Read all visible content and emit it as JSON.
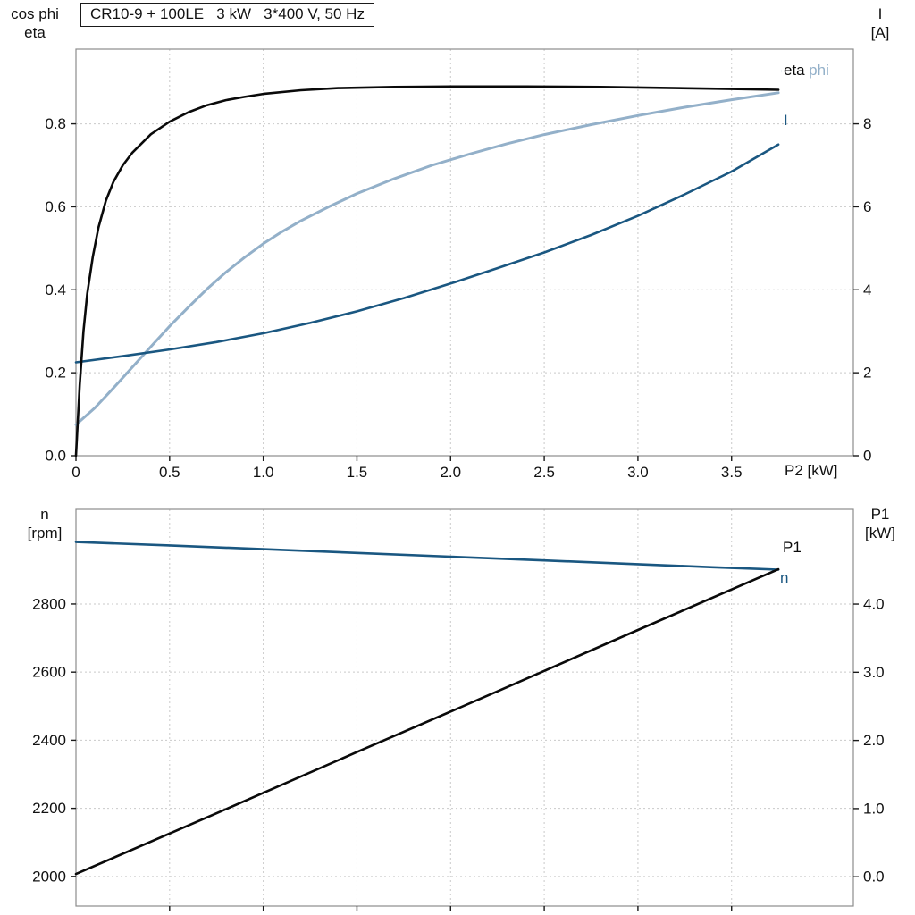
{
  "title_box": {
    "text": "CR10-9 + 100LE   3 kW   3*400 V, 50 Hz"
  },
  "labels": {
    "top_left_line1": "cos phi",
    "top_left_line2": "eta",
    "top_right_line1": "I",
    "top_right_line2": "[A]",
    "bottom_left_line1": "n",
    "bottom_left_line2": "[rpm]",
    "bottom_right_line1": "P1",
    "bottom_right_line2": "[kW]",
    "x_axis_label": "P2 [kW]"
  },
  "colors": {
    "black_curve": "#0a0a0a",
    "light_blue": "#93b0c9",
    "dark_blue": "#1a5781",
    "grid": "#c9c9c9",
    "frame": "#8c8c8c",
    "text": "#111111"
  },
  "chart_data": [
    {
      "id": "top",
      "type": "line",
      "title": "CR10-9 + 100LE   3 kW   3*400 V, 50 Hz",
      "x_axis": {
        "label": "P2 [kW]",
        "lim": [
          0,
          4.15
        ],
        "ticks": [
          {
            "v": 0,
            "label": "0"
          },
          {
            "v": 0.5,
            "label": "0.5"
          },
          {
            "v": 1,
            "label": "1.0"
          },
          {
            "v": 1.5,
            "label": "1.5"
          },
          {
            "v": 2,
            "label": "2.0"
          },
          {
            "v": 2.5,
            "label": "2.5"
          },
          {
            "v": 3,
            "label": "3.0"
          },
          {
            "v": 3.5,
            "label": "3.5"
          }
        ]
      },
      "left_axis": {
        "label": "cos phi / eta",
        "lim": [
          0,
          0.98
        ],
        "ticks": [
          {
            "v": 0,
            "label": "0.0"
          },
          {
            "v": 0.2,
            "label": "0.2"
          },
          {
            "v": 0.4,
            "label": "0.4"
          },
          {
            "v": 0.6,
            "label": "0.6"
          },
          {
            "v": 0.8,
            "label": "0.8"
          }
        ]
      },
      "right_axis": {
        "label": "I [A]",
        "lim": [
          0,
          9.8
        ],
        "ticks": [
          {
            "v": 0,
            "label": "0"
          },
          {
            "v": 2,
            "label": "2"
          },
          {
            "v": 4,
            "label": "4"
          },
          {
            "v": 6,
            "label": "6"
          },
          {
            "v": 8,
            "label": "8"
          }
        ]
      },
      "grid": true,
      "legend_position": "right-end-of-curves",
      "series": [
        {
          "name": "cos-phi",
          "label": "cos phi",
          "axis": "left",
          "color": "light_blue",
          "width": 3,
          "points": [
            [
              0,
              0.075
            ],
            [
              0.1,
              0.115
            ],
            [
              0.2,
              0.163
            ],
            [
              0.3,
              0.213
            ],
            [
              0.4,
              0.263
            ],
            [
              0.5,
              0.312
            ],
            [
              0.6,
              0.358
            ],
            [
              0.7,
              0.402
            ],
            [
              0.8,
              0.442
            ],
            [
              0.9,
              0.478
            ],
            [
              1.0,
              0.511
            ],
            [
              1.1,
              0.54
            ],
            [
              1.2,
              0.566
            ],
            [
              1.35,
              0.6
            ],
            [
              1.5,
              0.632
            ],
            [
              1.7,
              0.668
            ],
            [
              1.9,
              0.7
            ],
            [
              2.1,
              0.727
            ],
            [
              2.3,
              0.752
            ],
            [
              2.5,
              0.774
            ],
            [
              2.75,
              0.798
            ],
            [
              3.0,
              0.82
            ],
            [
              3.25,
              0.84
            ],
            [
              3.5,
              0.858
            ],
            [
              3.75,
              0.875
            ]
          ]
        },
        {
          "name": "current",
          "label": "I",
          "axis": "right",
          "color": "dark_blue",
          "width": 2.6,
          "points": [
            [
              0,
              2.25
            ],
            [
              0.25,
              2.4
            ],
            [
              0.5,
              2.56
            ],
            [
              0.75,
              2.74
            ],
            [
              1.0,
              2.95
            ],
            [
              1.25,
              3.2
            ],
            [
              1.5,
              3.48
            ],
            [
              1.75,
              3.8
            ],
            [
              2.0,
              4.15
            ],
            [
              2.25,
              4.52
            ],
            [
              2.5,
              4.9
            ],
            [
              2.75,
              5.32
            ],
            [
              3.0,
              5.78
            ],
            [
              3.25,
              6.3
            ],
            [
              3.5,
              6.85
            ],
            [
              3.75,
              7.5
            ]
          ]
        },
        {
          "name": "eta",
          "label": "eta",
          "axis": "left",
          "color": "black_curve",
          "width": 2.6,
          "points": [
            [
              0,
              0
            ],
            [
              0.02,
              0.17
            ],
            [
              0.04,
              0.3
            ],
            [
              0.06,
              0.39
            ],
            [
              0.09,
              0.48
            ],
            [
              0.12,
              0.55
            ],
            [
              0.16,
              0.615
            ],
            [
              0.2,
              0.66
            ],
            [
              0.25,
              0.7
            ],
            [
              0.3,
              0.73
            ],
            [
              0.4,
              0.775
            ],
            [
              0.5,
              0.805
            ],
            [
              0.6,
              0.828
            ],
            [
              0.7,
              0.845
            ],
            [
              0.8,
              0.857
            ],
            [
              0.9,
              0.865
            ],
            [
              1.0,
              0.872
            ],
            [
              1.2,
              0.881
            ],
            [
              1.4,
              0.886
            ],
            [
              1.7,
              0.889
            ],
            [
              2.0,
              0.89
            ],
            [
              2.4,
              0.89
            ],
            [
              2.8,
              0.889
            ],
            [
              3.2,
              0.886
            ],
            [
              3.5,
              0.884
            ],
            [
              3.75,
              0.882
            ]
          ]
        }
      ]
    },
    {
      "id": "bottom",
      "type": "line",
      "x_axis": {
        "label": "",
        "lim": [
          0,
          4.15
        ],
        "ticks": [
          {
            "v": 0.5
          },
          {
            "v": 1
          },
          {
            "v": 1.5
          },
          {
            "v": 2
          },
          {
            "v": 2.5
          },
          {
            "v": 3
          },
          {
            "v": 3.5
          }
        ]
      },
      "left_axis": {
        "label": "n [rpm]",
        "lim": [
          1913,
          3078
        ],
        "ticks": [
          {
            "v": 2000,
            "label": "2000"
          },
          {
            "v": 2200,
            "label": "2200"
          },
          {
            "v": 2400,
            "label": "2400"
          },
          {
            "v": 2600,
            "label": "2600"
          },
          {
            "v": 2800,
            "label": "2800"
          }
        ]
      },
      "right_axis": {
        "label": "P1 [kW]",
        "lim": [
          -0.43,
          5.39
        ],
        "ticks": [
          {
            "v": 0,
            "label": "0.0"
          },
          {
            "v": 1,
            "label": "1.0"
          },
          {
            "v": 2,
            "label": "2.0"
          },
          {
            "v": 3,
            "label": "3.0"
          },
          {
            "v": 4,
            "label": "4.0"
          }
        ]
      },
      "grid": true,
      "legend_position": "right-end-of-curves",
      "series": [
        {
          "name": "n",
          "label": "n",
          "axis": "left",
          "color": "dark_blue",
          "width": 2.6,
          "points": [
            [
              0,
              2982
            ],
            [
              0.5,
              2972
            ],
            [
              1.0,
              2961
            ],
            [
              1.5,
              2950
            ],
            [
              2.0,
              2939
            ],
            [
              2.5,
              2928
            ],
            [
              3.0,
              2917
            ],
            [
              3.4,
              2908
            ],
            [
              3.75,
              2901
            ]
          ]
        },
        {
          "name": "p1",
          "label": "P1",
          "axis": "right",
          "color": "black_curve",
          "width": 2.6,
          "points": [
            [
              0,
              0.04
            ],
            [
              0.75,
              0.93
            ],
            [
              1.5,
              1.83
            ],
            [
              2.25,
              2.72
            ],
            [
              3.0,
              3.62
            ],
            [
              3.75,
              4.51
            ]
          ]
        }
      ]
    }
  ]
}
